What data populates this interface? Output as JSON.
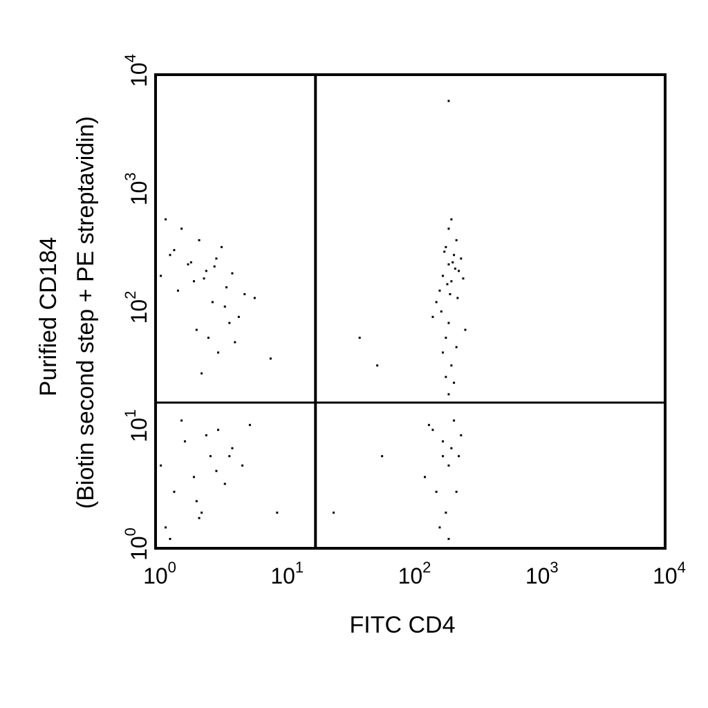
{
  "chart_data": {
    "type": "scatter",
    "xlabel": "FITC CD4",
    "ylabel": [
      "Purified CD184",
      "(Biotin second step + PE streptavidin)"
    ],
    "xscale": "log",
    "yscale": "log",
    "xlim": [
      1,
      10000
    ],
    "ylim": [
      1,
      10000
    ],
    "xticks": [
      {
        "value": 1,
        "label": "10",
        "exponent": "0"
      },
      {
        "value": 10,
        "label": "10",
        "exponent": "1"
      },
      {
        "value": 100,
        "label": "10",
        "exponent": "2"
      },
      {
        "value": 1000,
        "label": "10",
        "exponent": "3"
      },
      {
        "value": 10000,
        "label": "10",
        "exponent": "4"
      }
    ],
    "yticks": [
      {
        "value": 1,
        "label": "10",
        "exponent": "0"
      },
      {
        "value": 10,
        "label": "10",
        "exponent": "1"
      },
      {
        "value": 100,
        "label": "10",
        "exponent": "2"
      },
      {
        "value": 1000,
        "label": "10",
        "exponent": "3"
      },
      {
        "value": 10000,
        "label": "10",
        "exponent": "4"
      }
    ],
    "quadrant_x": 18,
    "quadrant_y": 17,
    "color": "#000000",
    "x": [
      1.1,
      1.3,
      1.5,
      1.8,
      2.0,
      2.2,
      2.5,
      2.8,
      3.0,
      3.3,
      3.6,
      4.0,
      4.5,
      5.0,
      1.2,
      1.6,
      2.1,
      2.6,
      3.1,
      3.8,
      1.4,
      1.9,
      2.4,
      2.9,
      3.5,
      4.2,
      6.0,
      8.0,
      1.0,
      2.3,
      1.1,
      1.4,
      1.7,
      2.0,
      2.3,
      2.7,
      3.1,
      3.5,
      4.0,
      4.8,
      1.2,
      1.6,
      2.1,
      2.5,
      3.0,
      3.8,
      5.5,
      1.3,
      2.2,
      9.0,
      180,
      200,
      220,
      240,
      190,
      210,
      230,
      170,
      250,
      200,
      215,
      185,
      205,
      225,
      195,
      160,
      260,
      210,
      175,
      235,
      200,
      190,
      180,
      210,
      220,
      150,
      270,
      200,
      230,
      190,
      150,
      180,
      200,
      220,
      160,
      240,
      190,
      130,
      210,
      170,
      250,
      140,
      200,
      230,
      180,
      25,
      40,
      60,
      200,
      55
    ],
    "y": [
      200,
      300,
      150,
      250,
      180,
      400,
      220,
      120,
      280,
      350,
      160,
      210,
      90,
      140,
      600,
      500,
      70,
      60,
      45,
      80,
      330,
      260,
      190,
      240,
      110,
      55,
      130,
      40,
      350,
      30,
      5,
      3,
      8,
      4,
      2,
      6,
      10,
      3.5,
      7,
      5,
      1.5,
      12,
      2.5,
      9,
      4.5,
      6,
      11,
      1.2,
      1.8,
      2,
      200,
      250,
      300,
      220,
      350,
      180,
      400,
      150,
      280,
      500,
      260,
      320,
      140,
      230,
      170,
      120,
      190,
      600,
      100,
      130,
      80,
      60,
      45,
      35,
      25,
      90,
      70,
      20,
      50,
      28,
      10,
      8,
      5,
      12,
      3,
      6,
      2,
      4,
      7,
      1.5,
      9,
      11,
      1.2,
      3,
      6,
      2,
      60,
      6,
      6000,
      35
    ]
  }
}
